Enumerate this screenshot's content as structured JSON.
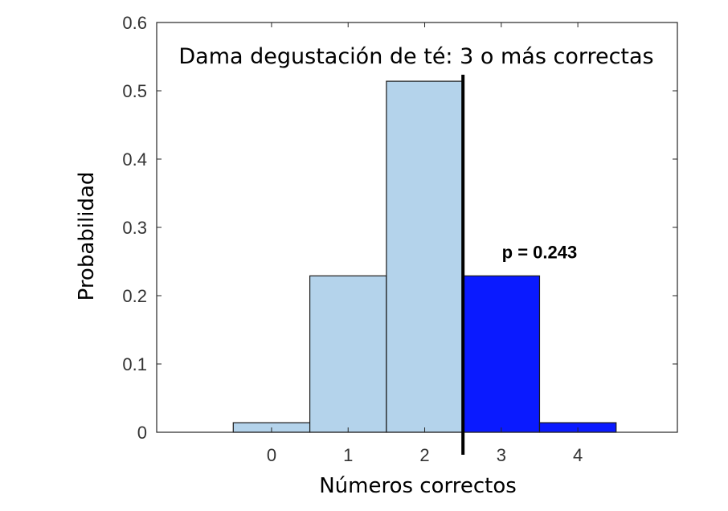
{
  "chart_data": {
    "type": "bar",
    "title": "Dama degustación de té: 3 o más correctas",
    "xlabel": "Números correctos",
    "ylabel": "Probabilidad",
    "categories": [
      "0",
      "1",
      "2",
      "3",
      "4"
    ],
    "x": [
      0,
      1,
      2,
      3,
      4
    ],
    "values": [
      0.014,
      0.229,
      0.514,
      0.229,
      0.014
    ],
    "highlight_from": 3,
    "xlim": [
      -1.5,
      5.3
    ],
    "ylim": [
      0,
      0.6
    ],
    "yticks": [
      "0",
      "0.1",
      "0.2",
      "0.3",
      "0.4",
      "0.5",
      "0.6"
    ],
    "threshold_x": 2.5,
    "annotation": "p = 0.243",
    "grid": false,
    "colors": {
      "base_bar": "#b4d3eb",
      "highlight_bar": "#0a1aff",
      "bar_edge": "#1a1a1a",
      "threshold_line": "#000000"
    }
  }
}
